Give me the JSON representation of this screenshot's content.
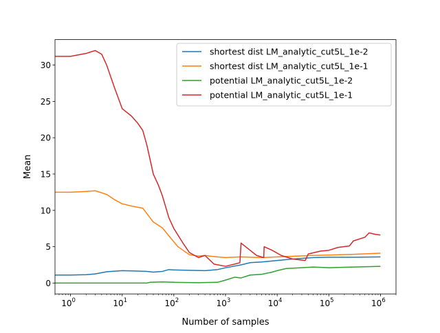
{
  "chart_data": {
    "type": "line",
    "title": "",
    "xlabel": "Number of samples",
    "ylabel": "Mean",
    "xscale": "log",
    "xlim": [
      0.5,
      2000000
    ],
    "ylim": [
      -1.5,
      33.5
    ],
    "grid": false,
    "legend_position": "top-right",
    "xticks": [
      {
        "value": 1,
        "base": "10",
        "exp": "0"
      },
      {
        "value": 10,
        "base": "10",
        "exp": "1"
      },
      {
        "value": 100,
        "base": "10",
        "exp": "2"
      },
      {
        "value": 1000,
        "base": "10",
        "exp": "3"
      },
      {
        "value": 10000,
        "base": "10",
        "exp": "4"
      },
      {
        "value": 100000,
        "base": "10",
        "exp": "5"
      },
      {
        "value": 1000000,
        "base": "10",
        "exp": "6"
      }
    ],
    "yticks": [
      0,
      5,
      10,
      15,
      20,
      25,
      30
    ],
    "series": [
      {
        "name": "shortest dist LM_analytic_cut5L_1e-2",
        "color": "#1f77b4",
        "points": [
          [
            0.5,
            1.1
          ],
          [
            1,
            1.1
          ],
          [
            2,
            1.15
          ],
          [
            3,
            1.25
          ],
          [
            5,
            1.55
          ],
          [
            10,
            1.7
          ],
          [
            20,
            1.65
          ],
          [
            30,
            1.6
          ],
          [
            40,
            1.5
          ],
          [
            60,
            1.6
          ],
          [
            80,
            1.85
          ],
          [
            100,
            1.8
          ],
          [
            200,
            1.75
          ],
          [
            400,
            1.7
          ],
          [
            700,
            1.85
          ],
          [
            1000,
            2.1
          ],
          [
            2000,
            2.5
          ],
          [
            3000,
            2.8
          ],
          [
            5000,
            2.9
          ],
          [
            10000,
            3.1
          ],
          [
            20000,
            3.3
          ],
          [
            50000,
            3.5
          ],
          [
            100000,
            3.55
          ],
          [
            300000,
            3.55
          ],
          [
            1000000,
            3.6
          ]
        ]
      },
      {
        "name": "shortest dist LM_analytic_cut5L_1e-1",
        "color": "#ff7f0e",
        "points": [
          [
            0.5,
            12.5
          ],
          [
            1,
            12.5
          ],
          [
            2,
            12.6
          ],
          [
            3,
            12.7
          ],
          [
            5,
            12.2
          ],
          [
            7,
            11.5
          ],
          [
            10,
            10.9
          ],
          [
            15,
            10.6
          ],
          [
            25,
            10.3
          ],
          [
            40,
            8.4
          ],
          [
            60,
            7.6
          ],
          [
            80,
            6.5
          ],
          [
            120,
            5.0
          ],
          [
            200,
            3.9
          ],
          [
            300,
            3.7
          ],
          [
            400,
            3.8
          ],
          [
            500,
            3.7
          ],
          [
            700,
            3.6
          ],
          [
            1000,
            3.5
          ],
          [
            2000,
            3.6
          ],
          [
            5000,
            3.5
          ],
          [
            10000,
            3.6
          ],
          [
            50000,
            3.8
          ],
          [
            100000,
            3.85
          ],
          [
            300000,
            3.95
          ],
          [
            1000000,
            4.1
          ]
        ]
      },
      {
        "name": "potential LM_analytic_cut5L_1e-2",
        "color": "#2ca02c",
        "points": [
          [
            0.5,
            0.0
          ],
          [
            1,
            0.0
          ],
          [
            10,
            0.0
          ],
          [
            30,
            0.0
          ],
          [
            35,
            0.1
          ],
          [
            60,
            0.15
          ],
          [
            100,
            0.1
          ],
          [
            300,
            0.05
          ],
          [
            700,
            0.1
          ],
          [
            1000,
            0.4
          ],
          [
            1500,
            0.8
          ],
          [
            2000,
            0.7
          ],
          [
            3000,
            1.1
          ],
          [
            5000,
            1.2
          ],
          [
            8000,
            1.5
          ],
          [
            10000,
            1.7
          ],
          [
            15000,
            2.0
          ],
          [
            30000,
            2.1
          ],
          [
            50000,
            2.2
          ],
          [
            100000,
            2.1
          ],
          [
            300000,
            2.2
          ],
          [
            1000000,
            2.3
          ]
        ]
      },
      {
        "name": "potential LM_analytic_cut5L_1e-1",
        "color": "#d62728",
        "points": [
          [
            0.5,
            31.2
          ],
          [
            1,
            31.2
          ],
          [
            2,
            31.6
          ],
          [
            3,
            32.0
          ],
          [
            4,
            31.5
          ],
          [
            5,
            30.0
          ],
          [
            7,
            27.0
          ],
          [
            10,
            24.0
          ],
          [
            15,
            23.0
          ],
          [
            20,
            22.0
          ],
          [
            25,
            21.0
          ],
          [
            30,
            19.0
          ],
          [
            40,
            15.0
          ],
          [
            50,
            13.5
          ],
          [
            60,
            12.0
          ],
          [
            80,
            9.0
          ],
          [
            100,
            7.5
          ],
          [
            150,
            5.5
          ],
          [
            200,
            4.2
          ],
          [
            300,
            3.5
          ],
          [
            400,
            3.8
          ],
          [
            600,
            2.6
          ],
          [
            1000,
            2.3
          ],
          [
            1500,
            2.6
          ],
          [
            1900,
            2.8
          ],
          [
            2000,
            5.5
          ],
          [
            3000,
            4.5
          ],
          [
            4000,
            3.8
          ],
          [
            5500,
            3.5
          ],
          [
            5600,
            5.0
          ],
          [
            8000,
            4.5
          ],
          [
            12000,
            3.8
          ],
          [
            20000,
            3.3
          ],
          [
            35000,
            3.1
          ],
          [
            40000,
            4.0
          ],
          [
            70000,
            4.4
          ],
          [
            100000,
            4.5
          ],
          [
            150000,
            4.9
          ],
          [
            250000,
            5.1
          ],
          [
            300000,
            5.8
          ],
          [
            500000,
            6.3
          ],
          [
            600000,
            6.9
          ],
          [
            800000,
            6.7
          ],
          [
            1000000,
            6.6
          ]
        ]
      }
    ]
  }
}
